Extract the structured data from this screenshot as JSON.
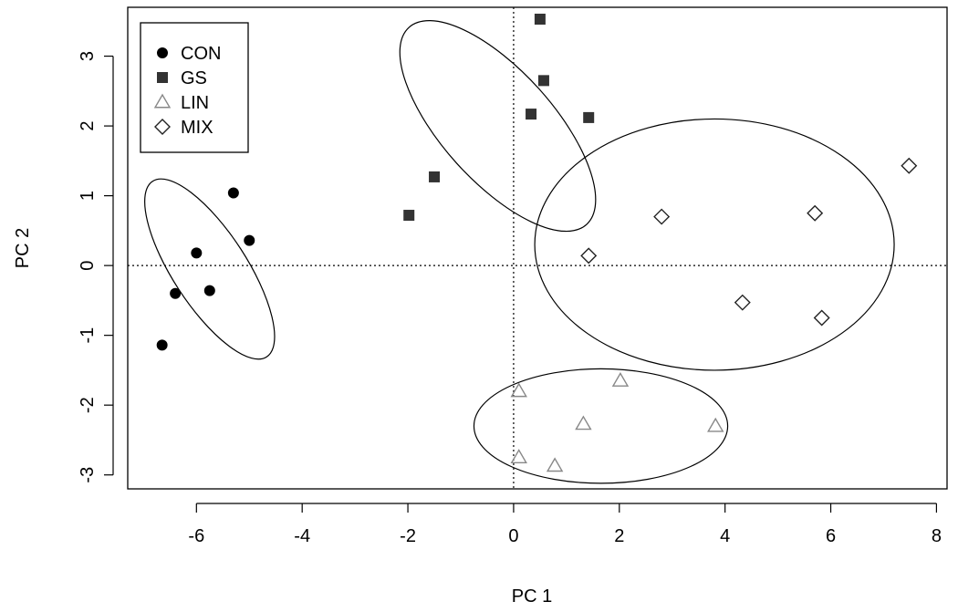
{
  "chart_data": {
    "type": "scatter",
    "title": "",
    "xlabel": "PC 1",
    "ylabel": "PC 2",
    "xlim": [
      -7.3,
      8.2
    ],
    "ylim": [
      -3.2,
      3.7
    ],
    "x_ticks": [
      -6,
      -4,
      -2,
      0,
      2,
      4,
      6,
      8
    ],
    "y_ticks": [
      -3,
      -2,
      -1,
      0,
      1,
      2,
      3
    ],
    "x_tick_labels": [
      "-6",
      "-4",
      "-2",
      "0",
      "2",
      "4",
      "6",
      "8"
    ],
    "y_tick_labels": [
      "-3",
      "-2",
      "-1",
      "0",
      "1",
      "2",
      "3"
    ],
    "grid": false,
    "reference_lines": {
      "x": 0,
      "y": 0,
      "style": "dotted"
    },
    "legend_position": "top-left",
    "series": [
      {
        "name": "CON",
        "marker": "filled-circle",
        "color": "#000000",
        "points": [
          [
            -5.3,
            1.04
          ],
          [
            -5.0,
            0.36
          ],
          [
            -6.0,
            0.18
          ],
          [
            -5.75,
            -0.36
          ],
          [
            -6.4,
            -0.4
          ],
          [
            -6.65,
            -1.14
          ]
        ],
        "ellipse": {
          "center": [
            -5.75,
            -0.05
          ],
          "semi_axes": [
            0.7,
            1.5
          ],
          "rotation_deg": -33
        }
      },
      {
        "name": "GS",
        "marker": "filled-square",
        "color": "#333333",
        "points": [
          [
            0.5,
            3.53
          ],
          [
            0.57,
            2.65
          ],
          [
            0.33,
            2.17
          ],
          [
            1.42,
            2.12
          ],
          [
            -1.5,
            1.27
          ],
          [
            -1.98,
            0.72
          ]
        ],
        "ellipse": {
          "center": [
            -0.3,
            2.0
          ],
          "semi_axes": [
            1.05,
            1.9
          ],
          "rotation_deg": -42
        }
      },
      {
        "name": "LIN",
        "marker": "open-triangle",
        "color": "#888888",
        "points": [
          [
            0.1,
            -1.8
          ],
          [
            2.02,
            -1.65
          ],
          [
            1.32,
            -2.27
          ],
          [
            3.82,
            -2.3
          ],
          [
            0.1,
            -2.75
          ],
          [
            0.78,
            -2.87
          ]
        ],
        "ellipse": {
          "center": [
            1.65,
            -2.3
          ],
          "semi_axes": [
            2.4,
            0.82
          ],
          "rotation_deg": 0
        }
      },
      {
        "name": "MIX",
        "marker": "open-diamond",
        "color": "#222222",
        "points": [
          [
            7.48,
            1.43
          ],
          [
            2.8,
            0.7
          ],
          [
            5.7,
            0.75
          ],
          [
            1.42,
            0.14
          ],
          [
            4.33,
            -0.53
          ],
          [
            5.83,
            -0.75
          ]
        ],
        "ellipse": {
          "center": [
            3.8,
            0.3
          ],
          "semi_axes": [
            3.4,
            1.8
          ],
          "rotation_deg": 0
        }
      }
    ]
  }
}
